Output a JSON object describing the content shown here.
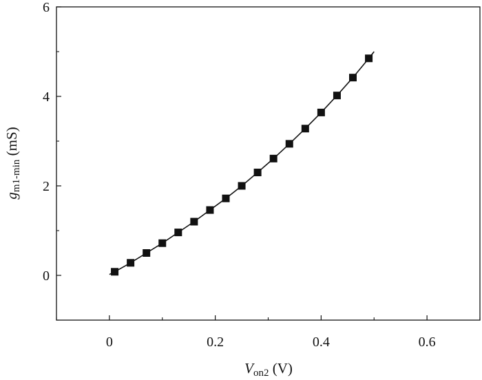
{
  "chart_data": {
    "type": "line",
    "title": "",
    "xlabel": {
      "main": "V",
      "sub": "on2",
      "unit": "(V)"
    },
    "ylabel": {
      "main": "g",
      "sub": "m1-min",
      "unit": "(mS)"
    },
    "xlim": [
      -0.1,
      0.7
    ],
    "ylim": [
      -1,
      6
    ],
    "xticks": [
      0,
      0.2,
      0.4,
      0.6
    ],
    "xtick_labels": [
      "0",
      "0.2",
      "0.4",
      "0.6"
    ],
    "yticks": [
      0,
      2,
      4,
      6
    ],
    "ytick_labels": [
      "0",
      "2",
      "4",
      "6"
    ],
    "grid": false,
    "series": [
      {
        "marker": "square",
        "color": "#111111",
        "x": [
          0.01,
          0.04,
          0.07,
          0.1,
          0.13,
          0.16,
          0.19,
          0.22,
          0.25,
          0.28,
          0.31,
          0.34,
          0.37,
          0.4,
          0.43,
          0.46,
          0.49
        ],
        "y": [
          0.08,
          0.28,
          0.5,
          0.72,
          0.96,
          1.2,
          1.46,
          1.72,
          2.0,
          2.3,
          2.61,
          2.94,
          3.28,
          3.64,
          4.02,
          4.42,
          4.85
        ]
      }
    ],
    "fit_line": {
      "x": [
        0.0,
        0.01,
        0.04,
        0.07,
        0.1,
        0.13,
        0.16,
        0.19,
        0.22,
        0.25,
        0.28,
        0.31,
        0.34,
        0.37,
        0.4,
        0.43,
        0.46,
        0.49,
        0.5
      ],
      "y": [
        0.02,
        0.08,
        0.28,
        0.5,
        0.72,
        0.96,
        1.2,
        1.46,
        1.72,
        2.0,
        2.3,
        2.61,
        2.94,
        3.28,
        3.64,
        4.02,
        4.42,
        4.85,
        5.0
      ]
    }
  }
}
